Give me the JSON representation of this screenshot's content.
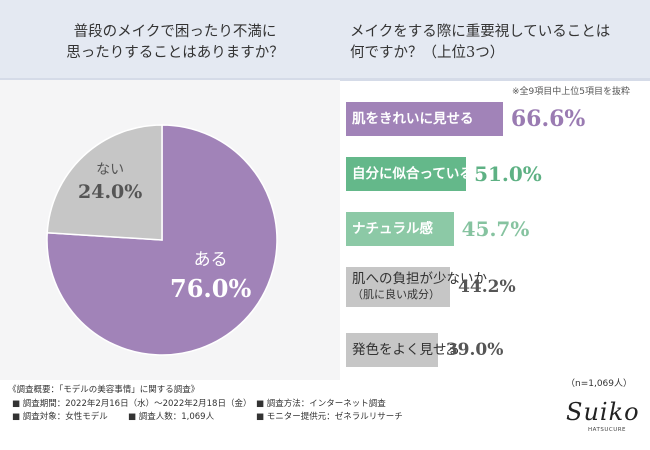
{
  "header": {
    "question1_lines": [
      "普段のメイクで困ったり不満に",
      "思ったりすることはありますか？"
    ],
    "question2_lines": [
      "メイクをする際に重要視していることは",
      "何ですか？（上位3つ）"
    ]
  },
  "note": "※全9項目中上位5項目を抜粋",
  "sample_size": "（n=1,069人）",
  "colors": {
    "purple": "#a183b8",
    "green": "#64b88a",
    "light_green": "#8cc9a6",
    "grey": "#c6c6c6",
    "header_bg": "#e4e9f2"
  },
  "chart_data": [
    {
      "type": "pie",
      "title": "普段のメイクで困ったり不満に思ったりすることはありますか？",
      "slices": [
        {
          "label": "ある",
          "value": 76.0,
          "display": "76.0%",
          "color": "#a183b8"
        },
        {
          "label": "ない",
          "value": 24.0,
          "display": "24.0%",
          "color": "#c6c6c6"
        }
      ]
    },
    {
      "type": "bar",
      "orientation": "horizontal",
      "title": "メイクをする際に重要視していることは何ですか？（上位3つ）",
      "xlim": [
        0,
        100
      ],
      "categories": [
        "肌をきれいに見せる",
        "自分に似合っているか",
        "ナチュラル感",
        "肌への負担が少ないか（肌に良い成分）",
        "発色をよく見せる"
      ],
      "label_lines": [
        [
          "肌をきれいに見せる"
        ],
        [
          "自分に似合っているか"
        ],
        [
          "ナチュラル感"
        ],
        [
          "肌への負担が少ないか",
          "（肌に良い成分）"
        ],
        [
          "発色をよく見せる"
        ]
      ],
      "values": [
        66.6,
        51.0,
        45.7,
        44.2,
        39.0
      ],
      "display": [
        "66.6%",
        "51.0%",
        "45.7%",
        "44.2%",
        "39.0%"
      ],
      "colors": [
        "#a183b8",
        "#64b88a",
        "#8cc9a6",
        "#c6c6c6",
        "#c6c6c6"
      ],
      "value_colors": [
        "#9a7bb2",
        "#5eb184",
        "#86c3a0",
        "#555555",
        "#555555"
      ]
    }
  ],
  "footer": {
    "title": "《調査概要：「モデルの美容事情」に関する調査》",
    "items": [
      "■ 調査期間：2022年2月16日（水）～2022年2月18日（金）",
      "■ 調査方法：インターネット調査",
      "■ 調査対象：女性モデル",
      "■ 調査人数：1,069人",
      "■ モニター提供元：ゼネラルリサーチ"
    ]
  },
  "logo": {
    "text": "Suiko",
    "sub": "HATSUCURE"
  }
}
